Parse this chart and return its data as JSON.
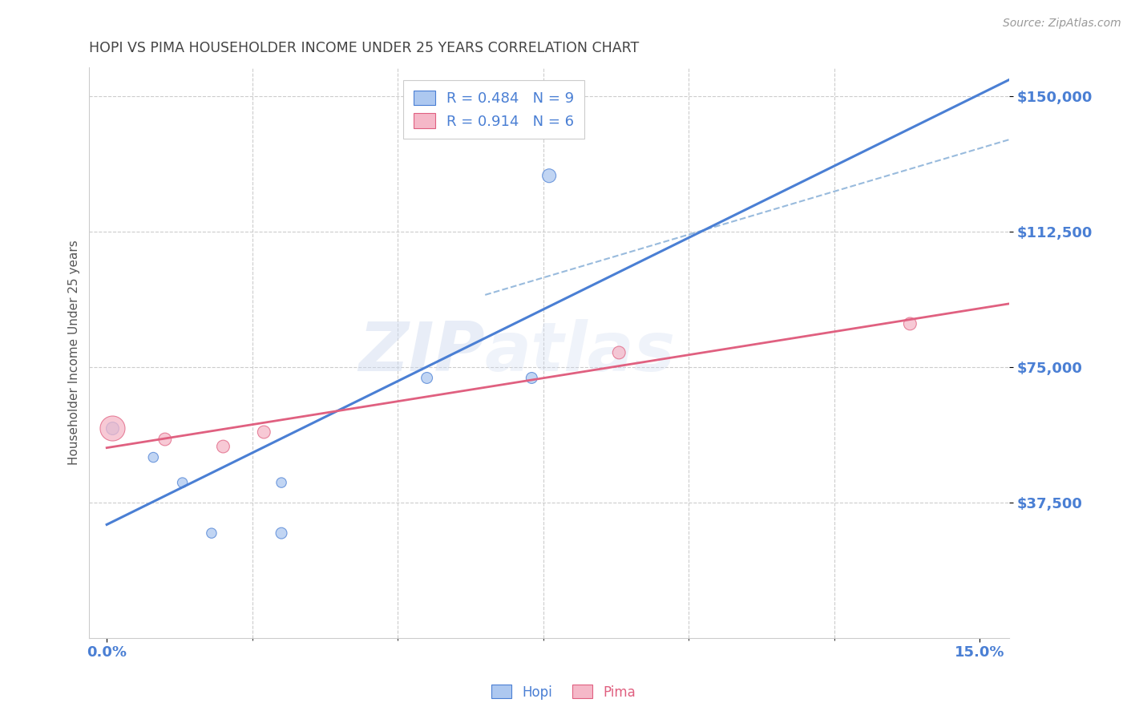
{
  "title": "HOPI VS PIMA HOUSEHOLDER INCOME UNDER 25 YEARS CORRELATION CHART",
  "source": "Source: ZipAtlas.com",
  "ylabel": "Householder Income Under 25 years",
  "xlim": [
    -0.003,
    0.155
  ],
  "ylim": [
    0,
    158000
  ],
  "xtick_labels": [
    "0.0%",
    "15.0%"
  ],
  "xtick_positions": [
    0.0,
    0.15
  ],
  "ytick_labels": [
    "$37,500",
    "$75,000",
    "$112,500",
    "$150,000"
  ],
  "ytick_values": [
    37500,
    75000,
    112500,
    150000
  ],
  "hopi_fill_color": "#adc8f0",
  "pima_fill_color": "#f5b8c8",
  "hopi_line_color": "#4a7fd4",
  "pima_line_color": "#e06080",
  "dash_line_color": "#99bbdd",
  "legend_r_hopi": "R = 0.484",
  "legend_n_hopi": "N = 9",
  "legend_r_pima": "R = 0.914",
  "legend_n_pima": "N = 6",
  "watermark_zip": "ZIP",
  "watermark_atlas": "atlas",
  "hopi_x": [
    0.001,
    0.008,
    0.013,
    0.018,
    0.03,
    0.055,
    0.073,
    0.076,
    0.03
  ],
  "hopi_y": [
    58000,
    50000,
    43000,
    29000,
    43000,
    72000,
    72000,
    128000,
    29000
  ],
  "pima_x": [
    0.001,
    0.01,
    0.02,
    0.027,
    0.088,
    0.138
  ],
  "pima_y": [
    58000,
    55000,
    53000,
    57000,
    79000,
    87000
  ],
  "hopi_sizes": [
    130,
    80,
    80,
    80,
    80,
    100,
    100,
    150,
    100
  ],
  "pima_sizes": [
    500,
    130,
    130,
    130,
    130,
    130
  ],
  "background_color": "#ffffff",
  "grid_color": "#cccccc",
  "title_color": "#444444",
  "axis_label_color": "#555555",
  "tick_color_blue": "#4a7fd4",
  "source_color": "#999999"
}
